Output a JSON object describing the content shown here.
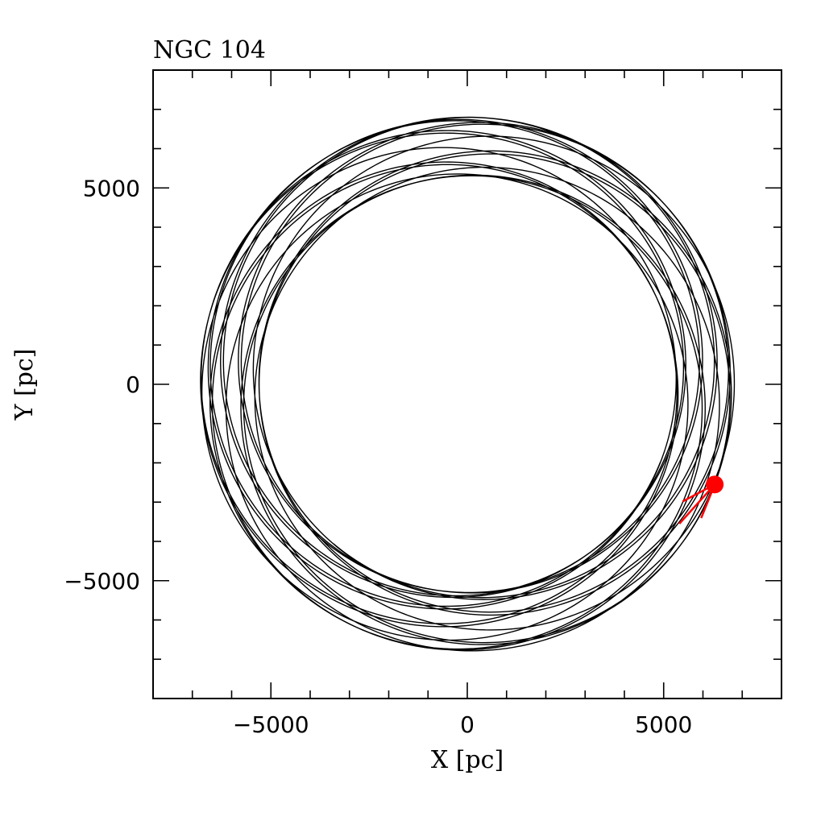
{
  "chart_data": {
    "type": "line",
    "title": "NGC 104",
    "xlabel": "X [pc]",
    "ylabel": "Y [pc]",
    "xlim": [
      -8000,
      8000
    ],
    "ylim": [
      -8000,
      8000
    ],
    "xticks": [
      {
        "value": -5000,
        "label": "−5000"
      },
      {
        "value": 0,
        "label": "0"
      },
      {
        "value": 5000,
        "label": "5000"
      }
    ],
    "yticks": [
      {
        "value": 5000,
        "label": "5000"
      },
      {
        "value": 0,
        "label": "0"
      },
      {
        "value": -5000,
        "label": "−5000"
      }
    ],
    "minor_tick_step": 1000,
    "grid": false,
    "series": [
      {
        "kind": "rosette orbit",
        "color": "#000000",
        "pericenter_radius": 5300,
        "apocenter_radius": 6800,
        "radial_periods": 15,
        "azimuthal_period_ratio": 1.22
      }
    ],
    "current_position": {
      "x": 6300,
      "y": -2550,
      "color": "#ff0000"
    },
    "velocity_arrow": {
      "from": {
        "x": 6300,
        "y": -2550
      },
      "to": {
        "x": 5400,
        "y": -3550
      },
      "color": "#ff0000"
    }
  }
}
